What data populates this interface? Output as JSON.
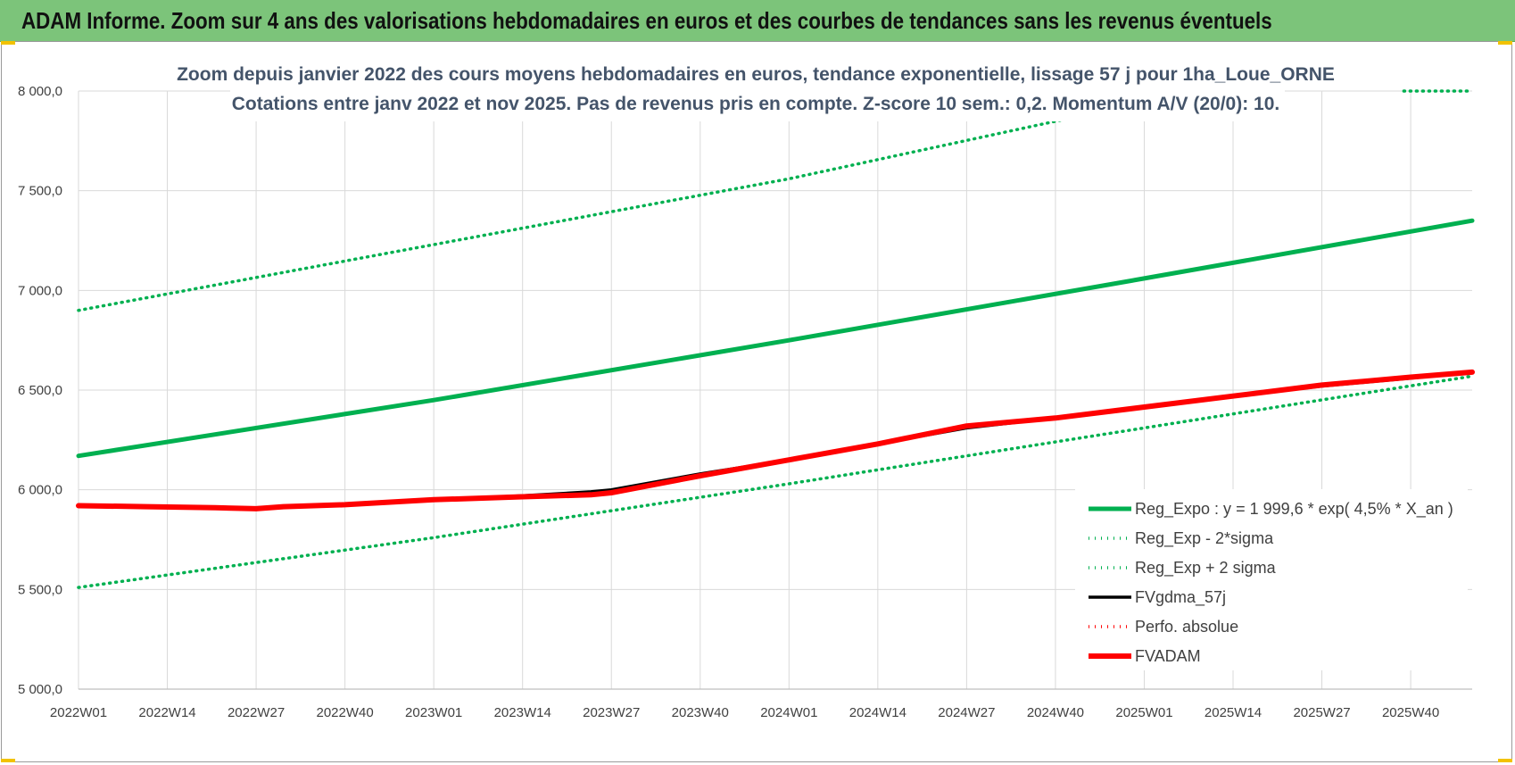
{
  "banner": {
    "title": "ADAM Informe. Zoom sur 4 ans des valorisations hebdomadaires en euros et des courbes de tendances sans les revenus éventuels"
  },
  "colors": {
    "banner_bg": "#7cc47a",
    "trend_green": "#00b050",
    "sigma_green": "#00b050",
    "fvgdma_black": "#000000",
    "perfo_red": "#ff0000",
    "fvadam_red": "#ff0000",
    "gridline": "#d9d9d9"
  },
  "chart_data": {
    "type": "line",
    "title": "Zoom depuis janvier 2022 des cours moyens hebdomadaires en euros, tendance exponentielle, lissage 57 j pour 1ha_Loue_ORNE",
    "subtitle": "Cotations entre janv 2022 et nov 2025. Pas de revenus pris en compte. Z-score 10 sem.: 0,2. Momentum A/V (20/0): 10.",
    "x_tick_labels": [
      "2022W01",
      "2022W14",
      "2022W27",
      "2022W40",
      "2023W01",
      "2023W14",
      "2023W27",
      "2023W40",
      "2024W01",
      "2024W14",
      "2024W27",
      "2024W40",
      "2025W01",
      "2025W14",
      "2025W27",
      "2025W40"
    ],
    "x_tick_weeks": [
      0,
      13,
      26,
      39,
      52,
      65,
      78,
      91,
      104,
      117,
      130,
      143,
      156,
      169,
      182,
      195
    ],
    "x_range_weeks": [
      0,
      204
    ],
    "ylim": [
      5000,
      8000
    ],
    "y_tick_labels": [
      "5 000,0",
      "5 500,0",
      "6 000,0",
      "6 500,0",
      "7 000,0",
      "7 500,0",
      "8 000,0"
    ],
    "y_tick_values": [
      5000,
      5500,
      6000,
      6500,
      7000,
      7500,
      8000
    ],
    "grid": true,
    "legend_position": "bottom-right",
    "series": [
      {
        "name": "Reg_Expo : y = 1 999,6 * exp( 4,5% *  X_an )",
        "style": "solid-thick",
        "color": "#00b050",
        "x": [
          0,
          52,
          104,
          156,
          204
        ],
        "y": [
          6170,
          6450,
          6750,
          7060,
          7350
        ]
      },
      {
        "name": "Reg_Exp - 2*sigma",
        "style": "dotted",
        "color": "#00b050",
        "x": [
          0,
          52,
          104,
          156,
          204
        ],
        "y": [
          5510,
          5760,
          6030,
          6310,
          6570
        ]
      },
      {
        "name": "Reg_Exp + 2 sigma",
        "style": "dotted",
        "color": "#00b050",
        "x": [
          0,
          52,
          104,
          150
        ],
        "y": [
          6900,
          7230,
          7560,
          7900
        ]
      },
      {
        "name": "FVgdma_57j",
        "style": "solid",
        "color": "#000000",
        "x": [
          0,
          10,
          20,
          26,
          30,
          39,
          52,
          65,
          75,
          78,
          91,
          104,
          117,
          130,
          143,
          156,
          169,
          182,
          195,
          204
        ],
        "y": [
          5920,
          5915,
          5910,
          5910,
          5915,
          5925,
          5950,
          5970,
          5990,
          6000,
          6080,
          6150,
          6230,
          6310,
          6360,
          6415,
          6470,
          6520,
          6560,
          6590
        ]
      },
      {
        "name": "Perfo. absolue",
        "style": "dotted",
        "color": "#ff0000",
        "x": [
          0,
          10,
          20,
          26,
          30,
          39,
          52,
          65,
          75,
          78,
          91,
          104,
          117,
          130,
          143,
          156,
          169,
          182,
          195,
          204
        ],
        "y": [
          5920,
          5915,
          5910,
          5905,
          5915,
          5925,
          5950,
          5965,
          5975,
          5985,
          6070,
          6150,
          6230,
          6320,
          6360,
          6415,
          6470,
          6525,
          6565,
          6590
        ]
      },
      {
        "name": "FVADAM",
        "style": "solid-thick",
        "color": "#ff0000",
        "x": [
          0,
          10,
          20,
          26,
          30,
          39,
          52,
          65,
          75,
          78,
          91,
          104,
          117,
          130,
          143,
          156,
          169,
          182,
          195,
          204
        ],
        "y": [
          5920,
          5915,
          5910,
          5905,
          5915,
          5925,
          5950,
          5965,
          5975,
          5985,
          6070,
          6150,
          6230,
          6320,
          6360,
          6415,
          6470,
          6525,
          6565,
          6590
        ]
      }
    ],
    "extra_segment": {
      "series": "Reg_Exp + 2 sigma",
      "x": [
        194,
        204
      ],
      "y": [
        8000,
        8000
      ]
    }
  }
}
